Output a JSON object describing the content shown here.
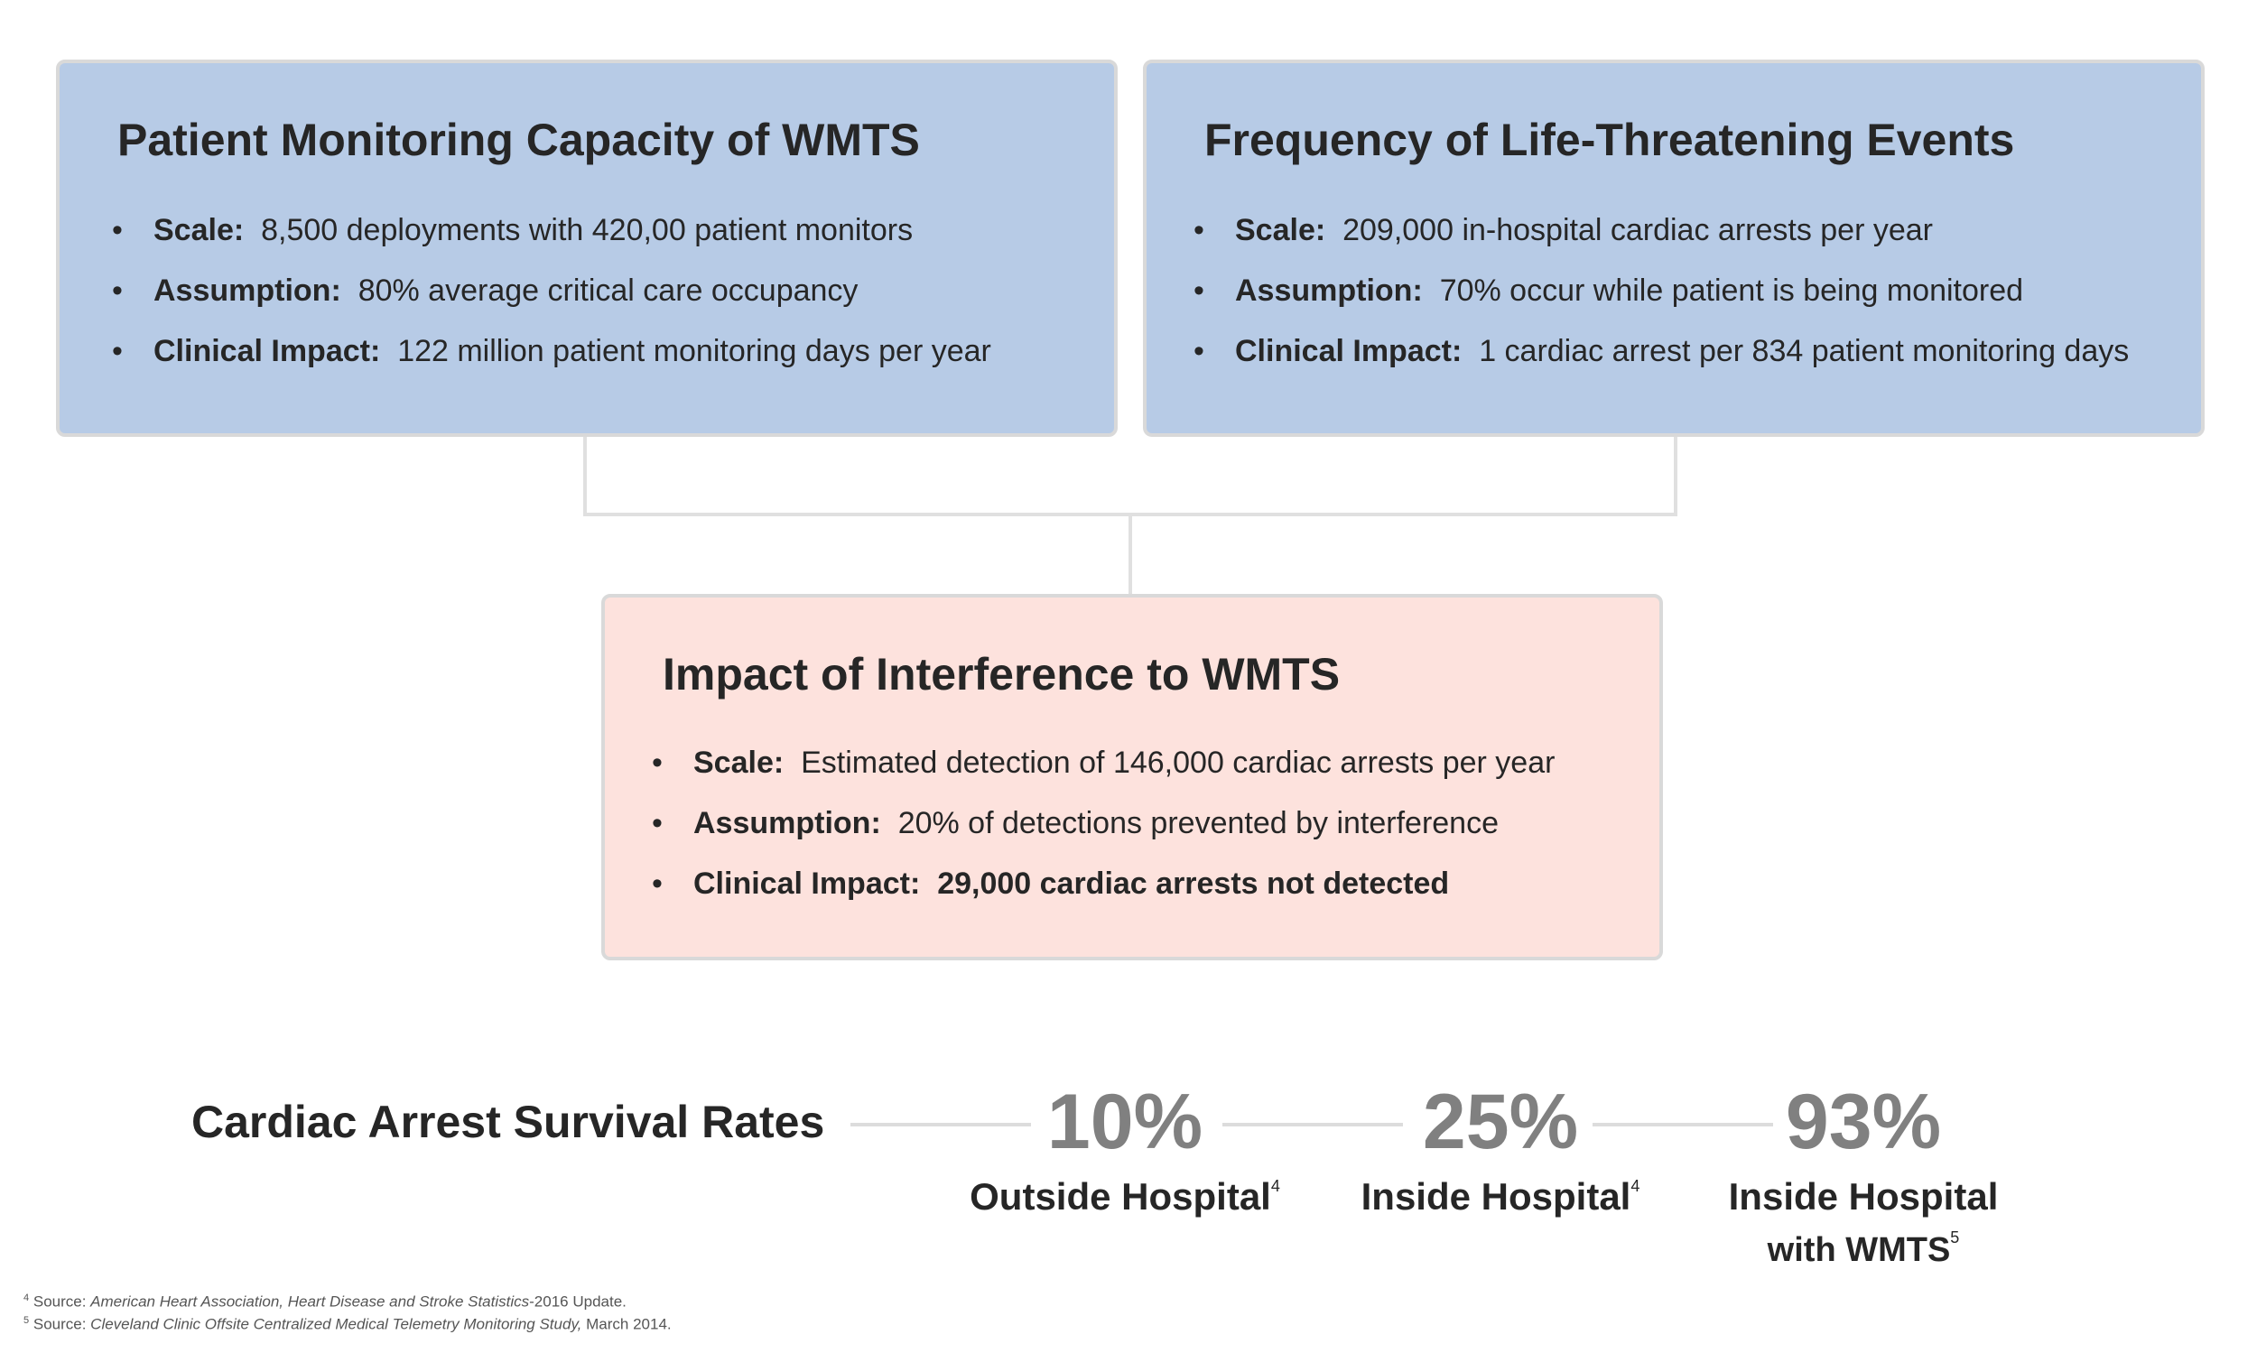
{
  "boxes": {
    "capacity": {
      "title": "Patient Monitoring Capacity of WMTS",
      "items": [
        {
          "label": "Scale:",
          "value": "8,500 deployments with 420,00 patient monitors"
        },
        {
          "label": "Assumption:",
          "value": "80% average critical care occupancy"
        },
        {
          "label": "Clinical Impact:",
          "value": "122 million patient monitoring days per year"
        }
      ]
    },
    "frequency": {
      "title": "Frequency of Life-Threatening Events",
      "items": [
        {
          "label": "Scale:",
          "value": "209,000 in-hospital cardiac arrests per year"
        },
        {
          "label": "Assumption:",
          "value": "70% occur while patient is being monitored"
        },
        {
          "label": "Clinical Impact:",
          "value": "1 cardiac arrest per 834 patient monitoring days"
        }
      ]
    },
    "impact": {
      "title": "Impact of Interference to WMTS",
      "items": [
        {
          "label": "Scale:",
          "value": "Estimated detection of 146,000 cardiac arrests per year"
        },
        {
          "label": "Assumption:",
          "value": "20% of detections prevented by interference"
        },
        {
          "label": "Clinical Impact:",
          "value": "29,000 cardiac arrests not detected"
        }
      ]
    }
  },
  "bullet_char": "•",
  "survival": {
    "title": "Cardiac Arrest Survival Rates",
    "stats": [
      {
        "value": "10%",
        "caption": "Outside Hospital",
        "caption_line2": "",
        "note": "4"
      },
      {
        "value": "25%",
        "caption": "Inside Hospital",
        "caption_line2": "",
        "note": "4"
      },
      {
        "value": "93%",
        "caption": "Inside Hospital",
        "caption_line2": "with WMTS",
        "note": "5"
      }
    ]
  },
  "footnotes": [
    {
      "num": "4",
      "prefix": "Source: ",
      "source": "American Heart Association, Heart Disease and Stroke Statistics",
      "suffix": "-2016 Update."
    },
    {
      "num": "5",
      "prefix": "Source: ",
      "source": "Cleveland Clinic Offsite Centralized Medical Telemetry Monitoring Study,",
      "suffix": " March 2014."
    }
  ],
  "colors": {
    "blue_box": "#b7cbe6",
    "pink_box": "#fde2dd",
    "stat_gray": "#808080"
  }
}
